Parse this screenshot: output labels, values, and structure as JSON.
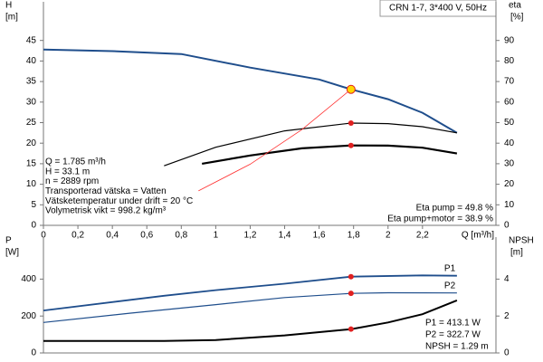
{
  "chart_data": [
    {
      "type": "line",
      "title": "CRN 1-7, 3*400 V, 50Hz",
      "ylabel": "H",
      "yunit": "[m]",
      "y2label": "eta",
      "y2unit": "[%]",
      "xlabel": "Q [m³/h]",
      "xlim": [
        0,
        2.6
      ],
      "ylim": [
        0,
        50
      ],
      "y2lim": [
        0,
        100
      ],
      "xticks": [
        0,
        {
          "value": 0.2,
          "label": "0,2"
        },
        {
          "value": 0.4,
          "label": "0,4"
        },
        {
          "value": 0.6,
          "label": "0,6"
        },
        {
          "value": 0.8,
          "label": "0,8"
        },
        1,
        {
          "value": 1.2,
          "label": "1,2"
        },
        {
          "value": 1.4,
          "label": "1,4"
        },
        {
          "value": 1.6,
          "label": "1,6"
        },
        {
          "value": 1.8,
          "label": "1,8"
        },
        2,
        {
          "value": 2.2,
          "label": "2,2"
        }
      ],
      "yticks": [
        0,
        5,
        10,
        15,
        20,
        25,
        30,
        35,
        40,
        45
      ],
      "y2ticks": [
        0,
        10,
        20,
        30,
        40,
        50,
        60,
        70,
        80,
        90
      ],
      "series": [
        {
          "color": "#1f4e8c",
          "x": [
            0,
            0.4,
            0.8,
            1.2,
            1.6,
            1.785,
            2.0,
            2.2,
            2.4
          ],
          "values": [
            42.8,
            42.4,
            41.7,
            38.4,
            35.5,
            33.1,
            30.7,
            27.4,
            22.5
          ]
        },
        {
          "color": "#000000",
          "axis": "y2",
          "x": [
            0.7,
            1.0,
            1.4,
            1.785,
            2.0,
            2.2,
            2.4
          ],
          "values": [
            29,
            38,
            46,
            49.8,
            49.5,
            48,
            45
          ]
        },
        {
          "color": "#000000",
          "axis": "y2",
          "x": [
            0.92,
            1.2,
            1.5,
            1.785,
            2.0,
            2.2,
            2.4
          ],
          "values": [
            30,
            34,
            37.5,
            38.9,
            38.8,
            37.8,
            35
          ]
        },
        {
          "color": "#ff3030",
          "x": [
            0.9,
            1.2,
            1.5,
            1.785,
            1.8
          ],
          "values": [
            8.4,
            14.9,
            23.3,
            33.1,
            33.7
          ]
        }
      ],
      "points": [
        {
          "x": 1.785,
          "y": 33.1,
          "color": "#ffd700"
        },
        {
          "x": 1.785,
          "y": 49.8,
          "axis": "y2",
          "color": "#e02020"
        },
        {
          "x": 1.785,
          "y": 38.9,
          "axis": "y2",
          "color": "#e02020"
        }
      ],
      "info": [
        "Q = 1.785 m³/h",
        "H = 33.1 m",
        "n = 2889 rpm",
        "Transporterad vätska = Vatten",
        "Vätsketemperatur under drift = 20 °C",
        "Volymetrisk vikt = 998.2 kg/m³"
      ],
      "eta_labels": [
        "Eta pump = 49.8 %",
        "Eta pump+motor = 38.9 %"
      ]
    },
    {
      "type": "line",
      "ylabel": "P",
      "yunit": "[W]",
      "y2label": "NPSH",
      "y2unit": "[m]",
      "xlim": [
        0,
        2.6
      ],
      "ylim": [
        0,
        500
      ],
      "y2lim": [
        0,
        5
      ],
      "yticks": [
        0,
        200,
        400
      ],
      "y2ticks": [
        0,
        2,
        4
      ],
      "series": [
        {
          "name": "P1",
          "color": "#1f4e8c",
          "x": [
            0,
            0.7,
            1.0,
            1.4,
            1.785,
            2.2,
            2.4
          ],
          "values": [
            230,
            310,
            340,
            375,
            413.1,
            420,
            418
          ]
        },
        {
          "name": "P2",
          "color": "#1f4e8c",
          "x": [
            0,
            0.5,
            1.0,
            1.4,
            1.785,
            2.0,
            2.4
          ],
          "values": [
            165,
            215,
            262,
            300,
            322.7,
            326,
            325
          ]
        },
        {
          "color": "#000000",
          "axis": "y2",
          "x": [
            0,
            0.7,
            1.0,
            1.4,
            1.785,
            2.0,
            2.2,
            2.4
          ],
          "values": [
            0.65,
            0.65,
            0.7,
            0.95,
            1.29,
            1.65,
            2.1,
            2.85
          ]
        }
      ],
      "points": [
        {
          "x": 1.785,
          "y": 413.1,
          "color": "#e02020"
        },
        {
          "x": 1.785,
          "y": 322.7,
          "color": "#e02020"
        },
        {
          "x": 1.785,
          "y": 1.29,
          "axis": "y2",
          "color": "#e02020"
        }
      ],
      "labels": [
        "P1 = 413.1 W",
        "P2 = 322.7 W",
        "NPSH = 1.29 m"
      ]
    }
  ]
}
